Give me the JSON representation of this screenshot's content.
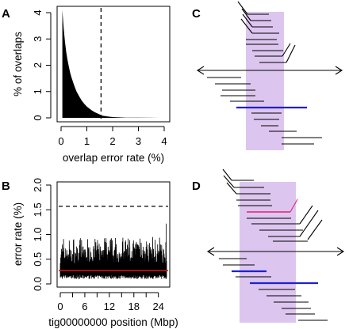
{
  "panels": {
    "A": {
      "letter": "A"
    },
    "B": {
      "letter": "B"
    },
    "C": {
      "letter": "C"
    },
    "D": {
      "letter": "D"
    }
  },
  "colors": {
    "highlight": "#dcc6ef",
    "blue_read": "#1f1fd0",
    "pink_read": "#e0207a",
    "red_line": "#e01010",
    "ink": "#000000"
  },
  "chart_data": [
    {
      "panel": "A",
      "type": "area",
      "xlabel": "overlap error rate (%)",
      "ylabel": "% of overlaps",
      "xlim": [
        0,
        4
      ],
      "ylim": [
        0,
        4.2
      ],
      "xticks": [
        "0",
        "1",
        "2",
        "3",
        "4"
      ],
      "yticks": [
        "0",
        "1",
        "2",
        "3",
        "4"
      ],
      "threshold_x": 1.55,
      "x": [
        0.05,
        0.1,
        0.15,
        0.2,
        0.25,
        0.3,
        0.35,
        0.4,
        0.5,
        0.6,
        0.7,
        0.8,
        0.9,
        1.0,
        1.1,
        1.2,
        1.3,
        1.4,
        1.5,
        1.6,
        1.8,
        2.0,
        2.5,
        3.0,
        3.5,
        3.85
      ],
      "y": [
        4.1,
        3.4,
        2.9,
        2.5,
        2.2,
        1.95,
        1.72,
        1.55,
        1.25,
        1.0,
        0.82,
        0.66,
        0.53,
        0.43,
        0.35,
        0.28,
        0.22,
        0.17,
        0.13,
        0.08,
        0.05,
        0.03,
        0.01,
        0.005,
        0.002,
        0.0
      ]
    },
    {
      "panel": "B",
      "type": "line",
      "xlabel": "tig00000000 position (Mbp)",
      "ylabel": "error rate (%)",
      "xlim": [
        0,
        26
      ],
      "ylim": [
        0,
        2.0
      ],
      "xticks": [
        "0",
        "6",
        "12",
        "18",
        "24"
      ],
      "xtick_values": [
        0,
        6,
        12,
        18,
        24
      ],
      "xminor_values": [
        3,
        9,
        15,
        21
      ],
      "yticks": [
        "0.0",
        "0.5",
        "1.0",
        "1.5",
        "2.0"
      ],
      "threshold_y": 1.57,
      "mean_y": 0.27,
      "series_min": 0.1,
      "series_max": 0.95,
      "spike": {
        "x": 25.9,
        "y": 1.22
      }
    }
  ]
}
